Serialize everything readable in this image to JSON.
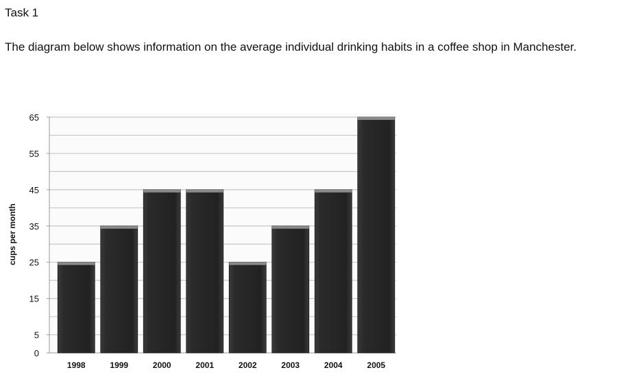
{
  "task": {
    "title": "Task 1"
  },
  "prompt": {
    "text": "The diagram below shows information on the average individual drinking habits in a coffee shop in Manchester."
  },
  "colors": {
    "bar": "#2a2a2a",
    "bar_top": "#8a8a8a",
    "grid": "#c8c8c8",
    "axis": "#999999",
    "text": "#111111"
  },
  "chart_data": {
    "type": "bar",
    "title": "",
    "xlabel": "",
    "ylabel": "cups per month",
    "categories": [
      "1998",
      "1999",
      "2000",
      "2001",
      "2002",
      "2003",
      "2004",
      "2005"
    ],
    "values": [
      25,
      35,
      45,
      45,
      25,
      35,
      45,
      65
    ],
    "ylim": [
      0,
      65
    ],
    "yticks": [
      0,
      5,
      15,
      25,
      35,
      45,
      55,
      65
    ],
    "grid_lines": [
      5,
      10,
      15,
      20,
      25,
      30,
      35,
      40,
      45,
      50,
      55,
      60,
      65
    ],
    "grid": true,
    "legend": "none"
  }
}
